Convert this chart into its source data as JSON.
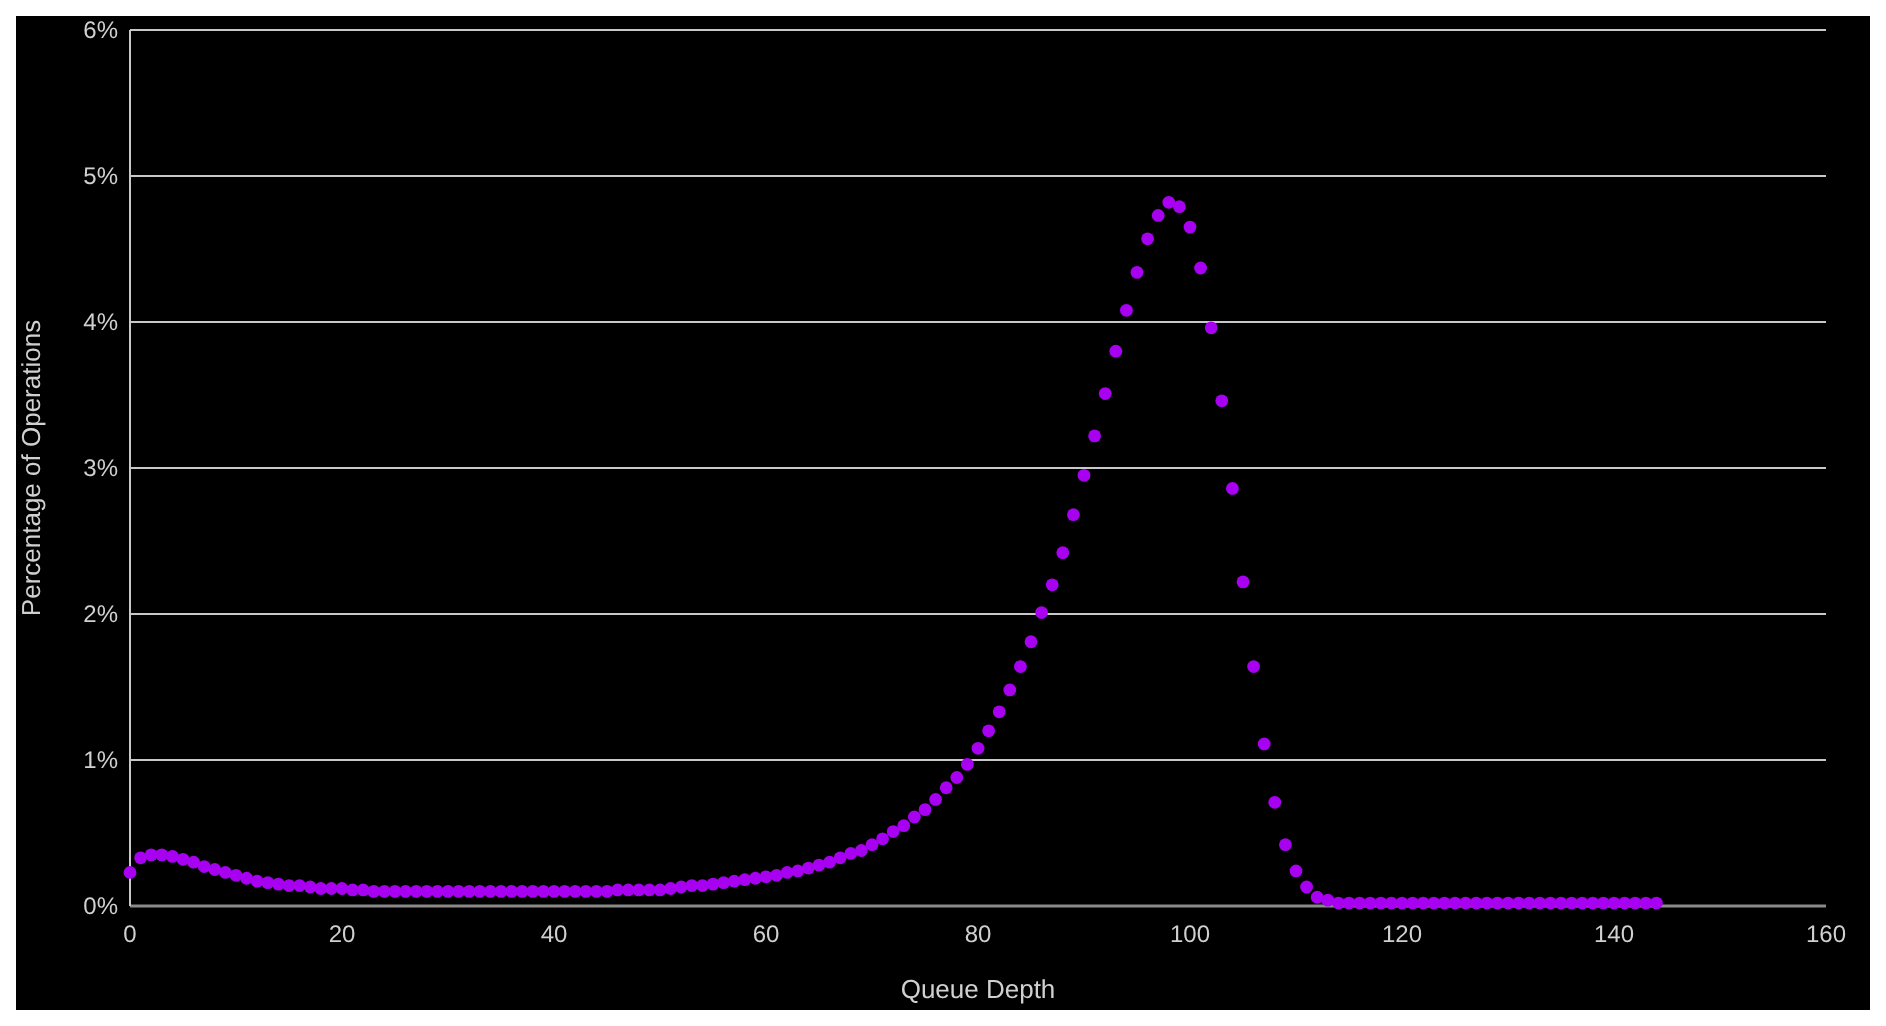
{
  "chart_data": {
    "type": "scatter",
    "xlabel": "Queue Depth",
    "ylabel": "Percentage of Operations",
    "xlim": [
      0,
      160
    ],
    "xticks": [
      0,
      20,
      40,
      60,
      80,
      100,
      120,
      140,
      160
    ],
    "ylim": [
      0,
      6
    ],
    "yticks": [
      {
        "value": 0,
        "label": "0%"
      },
      {
        "value": 1,
        "label": "1%"
      },
      {
        "value": 2,
        "label": "2%"
      },
      {
        "value": 3,
        "label": "3%"
      },
      {
        "value": 4,
        "label": "4%"
      },
      {
        "value": 5,
        "label": "5%"
      },
      {
        "value": 6,
        "label": "6%"
      }
    ],
    "grid": "y",
    "marker": "circle",
    "series": [
      {
        "color": "#a800f0",
        "x": [
          0,
          1,
          2,
          3,
          4,
          5,
          6,
          7,
          8,
          9,
          10,
          11,
          12,
          13,
          14,
          15,
          16,
          17,
          18,
          19,
          20,
          21,
          22,
          23,
          24,
          25,
          26,
          27,
          28,
          29,
          30,
          31,
          32,
          33,
          34,
          35,
          36,
          37,
          38,
          39,
          40,
          41,
          42,
          43,
          44,
          45,
          46,
          47,
          48,
          49,
          50,
          51,
          52,
          53,
          54,
          55,
          56,
          57,
          58,
          59,
          60,
          61,
          62,
          63,
          64,
          65,
          66,
          67,
          68,
          69,
          70,
          71,
          72,
          73,
          74,
          75,
          76,
          77,
          78,
          79,
          80,
          81,
          82,
          83,
          84,
          85,
          86,
          87,
          88,
          89,
          90,
          91,
          92,
          93,
          94,
          95,
          96,
          97,
          98,
          99,
          100,
          101,
          102,
          103,
          104,
          105,
          106,
          107,
          108,
          109,
          110,
          111,
          112,
          113,
          114,
          115,
          116,
          117,
          118,
          119,
          120,
          121,
          122,
          123,
          124,
          125,
          126,
          127,
          128,
          129,
          130,
          131,
          132,
          133,
          134,
          135,
          136,
          137,
          138,
          139,
          140,
          141,
          142,
          143,
          144
        ],
        "values": [
          0.23,
          0.33,
          0.35,
          0.35,
          0.34,
          0.32,
          0.3,
          0.27,
          0.25,
          0.23,
          0.21,
          0.19,
          0.17,
          0.16,
          0.15,
          0.14,
          0.14,
          0.13,
          0.12,
          0.12,
          0.12,
          0.11,
          0.11,
          0.1,
          0.1,
          0.1,
          0.1,
          0.1,
          0.1,
          0.1,
          0.1,
          0.1,
          0.1,
          0.1,
          0.1,
          0.1,
          0.1,
          0.1,
          0.1,
          0.1,
          0.1,
          0.1,
          0.1,
          0.1,
          0.1,
          0.1,
          0.11,
          0.11,
          0.11,
          0.11,
          0.11,
          0.12,
          0.13,
          0.14,
          0.14,
          0.15,
          0.16,
          0.17,
          0.18,
          0.19,
          0.2,
          0.21,
          0.23,
          0.24,
          0.26,
          0.28,
          0.3,
          0.33,
          0.36,
          0.38,
          0.42,
          0.46,
          0.51,
          0.55,
          0.61,
          0.66,
          0.73,
          0.81,
          0.88,
          0.97,
          1.08,
          1.2,
          1.33,
          1.48,
          1.64,
          1.81,
          2.01,
          2.2,
          2.42,
          2.68,
          2.95,
          3.22,
          3.51,
          3.8,
          4.08,
          4.34,
          4.57,
          4.73,
          4.82,
          4.79,
          4.65,
          4.37,
          3.96,
          3.46,
          2.86,
          2.22,
          1.64,
          1.11,
          0.71,
          0.42,
          0.24,
          0.13,
          0.06,
          0.04,
          0.02,
          0.02,
          0.02,
          0.02,
          0.02,
          0.02,
          0.02,
          0.02,
          0.02,
          0.02,
          0.02,
          0.02,
          0.02,
          0.02,
          0.02,
          0.02,
          0.02,
          0.02,
          0.02,
          0.02,
          0.02,
          0.02,
          0.02,
          0.02,
          0.02,
          0.02,
          0.02,
          0.02,
          0.02,
          0.02,
          0.02
        ]
      }
    ]
  }
}
